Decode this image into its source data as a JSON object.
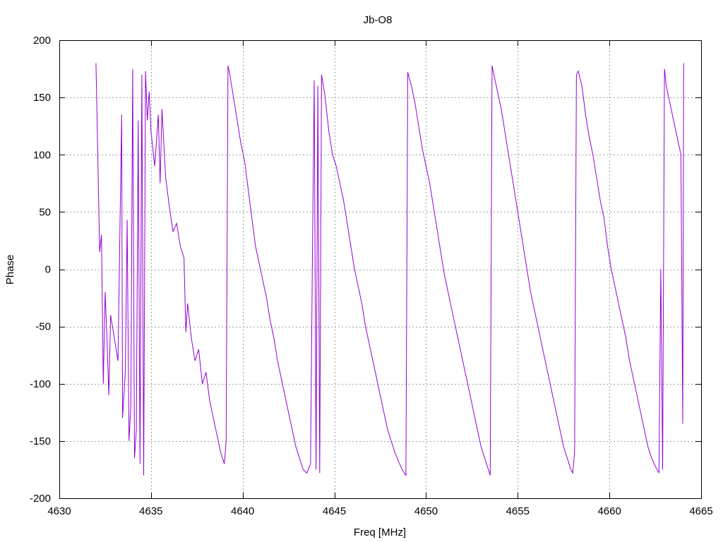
{
  "chart_data": {
    "type": "line",
    "title": "Jb-O8",
    "xlabel": "Freq [MHz]",
    "ylabel": "Phase",
    "xlim": [
      4630,
      4665
    ],
    "ylim": [
      -200,
      200
    ],
    "xticks": [
      4630,
      4635,
      4640,
      4645,
      4650,
      4655,
      4660,
      4665
    ],
    "yticks": [
      -200,
      -150,
      -100,
      -50,
      0,
      50,
      100,
      150,
      200
    ],
    "grid": true,
    "legend": "none",
    "line_color": "#9400d3",
    "series": [
      {
        "points": [
          [
            4632.0,
            180
          ],
          [
            4632.1,
            100
          ],
          [
            4632.2,
            15
          ],
          [
            4632.3,
            30
          ],
          [
            4632.4,
            -100
          ],
          [
            4632.5,
            -20
          ],
          [
            4632.6,
            -60
          ],
          [
            4632.7,
            -110
          ],
          [
            4632.8,
            -40
          ],
          [
            4633.0,
            -60
          ],
          [
            4633.2,
            -80
          ],
          [
            4633.4,
            135
          ],
          [
            4633.45,
            -130
          ],
          [
            4633.6,
            -90
          ],
          [
            4633.7,
            43
          ],
          [
            4633.8,
            -150
          ],
          [
            4633.9,
            -120
          ],
          [
            4634.0,
            175
          ],
          [
            4634.1,
            -165
          ],
          [
            4634.2,
            -140
          ],
          [
            4634.3,
            130
          ],
          [
            4634.4,
            -170
          ],
          [
            4634.5,
            170
          ],
          [
            4634.6,
            -180
          ],
          [
            4634.7,
            173
          ],
          [
            4634.8,
            130
          ],
          [
            4634.9,
            155
          ],
          [
            4635.0,
            120
          ],
          [
            4635.2,
            90
          ],
          [
            4635.4,
            135
          ],
          [
            4635.5,
            75
          ],
          [
            4635.6,
            140
          ],
          [
            4635.7,
            110
          ],
          [
            4635.8,
            80
          ],
          [
            4636.0,
            55
          ],
          [
            4636.2,
            33
          ],
          [
            4636.4,
            40
          ],
          [
            4636.6,
            20
          ],
          [
            4636.8,
            10
          ],
          [
            4636.9,
            -55
          ],
          [
            4637.0,
            -30
          ],
          [
            4637.2,
            -60
          ],
          [
            4637.4,
            -80
          ],
          [
            4637.6,
            -70
          ],
          [
            4637.8,
            -100
          ],
          [
            4638.0,
            -90
          ],
          [
            4638.2,
            -115
          ],
          [
            4638.4,
            -130
          ],
          [
            4638.6,
            -145
          ],
          [
            4638.8,
            -160
          ],
          [
            4639.0,
            -170
          ],
          [
            4639.1,
            -150
          ],
          [
            4639.2,
            178
          ],
          [
            4639.3,
            170
          ],
          [
            4639.5,
            150
          ],
          [
            4639.7,
            130
          ],
          [
            4639.9,
            110
          ],
          [
            4640.1,
            95
          ],
          [
            4640.3,
            70
          ],
          [
            4640.5,
            45
          ],
          [
            4640.7,
            20
          ],
          [
            4640.9,
            5
          ],
          [
            4641.1,
            -10
          ],
          [
            4641.3,
            -25
          ],
          [
            4641.5,
            -45
          ],
          [
            4641.7,
            -60
          ],
          [
            4641.9,
            -80
          ],
          [
            4642.1,
            -95
          ],
          [
            4642.3,
            -110
          ],
          [
            4642.5,
            -125
          ],
          [
            4642.7,
            -140
          ],
          [
            4642.9,
            -155
          ],
          [
            4643.1,
            -165
          ],
          [
            4643.3,
            -175
          ],
          [
            4643.5,
            -178
          ],
          [
            4643.7,
            -170
          ],
          [
            4643.8,
            5
          ],
          [
            4643.9,
            165
          ],
          [
            4644.0,
            -175
          ],
          [
            4644.1,
            160
          ],
          [
            4644.2,
            -178
          ],
          [
            4644.3,
            170
          ],
          [
            4644.5,
            150
          ],
          [
            4644.7,
            120
          ],
          [
            4644.9,
            100
          ],
          [
            4645.1,
            90
          ],
          [
            4645.3,
            75
          ],
          [
            4645.5,
            60
          ],
          [
            4645.7,
            40
          ],
          [
            4645.9,
            20
          ],
          [
            4646.1,
            0
          ],
          [
            4646.3,
            -15
          ],
          [
            4646.5,
            -30
          ],
          [
            4646.7,
            -50
          ],
          [
            4646.9,
            -65
          ],
          [
            4647.1,
            -80
          ],
          [
            4647.3,
            -95
          ],
          [
            4647.5,
            -110
          ],
          [
            4647.7,
            -125
          ],
          [
            4647.9,
            -140
          ],
          [
            4648.1,
            -150
          ],
          [
            4648.3,
            -160
          ],
          [
            4648.5,
            -168
          ],
          [
            4648.7,
            -175
          ],
          [
            4648.9,
            -180
          ],
          [
            4649.0,
            172
          ],
          [
            4649.2,
            160
          ],
          [
            4649.4,
            145
          ],
          [
            4649.6,
            125
          ],
          [
            4649.8,
            105
          ],
          [
            4650.0,
            90
          ],
          [
            4650.2,
            75
          ],
          [
            4650.4,
            55
          ],
          [
            4650.6,
            35
          ],
          [
            4650.8,
            15
          ],
          [
            4651.0,
            -5
          ],
          [
            4651.2,
            -20
          ],
          [
            4651.4,
            -35
          ],
          [
            4651.6,
            -50
          ],
          [
            4651.8,
            -65
          ],
          [
            4652.0,
            -80
          ],
          [
            4652.2,
            -95
          ],
          [
            4652.4,
            -110
          ],
          [
            4652.6,
            -125
          ],
          [
            4652.8,
            -140
          ],
          [
            4653.0,
            -155
          ],
          [
            4653.2,
            -165
          ],
          [
            4653.4,
            -175
          ],
          [
            4653.5,
            -180
          ],
          [
            4653.6,
            178
          ],
          [
            4653.7,
            170
          ],
          [
            4653.9,
            155
          ],
          [
            4654.1,
            140
          ],
          [
            4654.3,
            120
          ],
          [
            4654.5,
            100
          ],
          [
            4654.7,
            80
          ],
          [
            4654.9,
            60
          ],
          [
            4655.1,
            40
          ],
          [
            4655.3,
            20
          ],
          [
            4655.5,
            0
          ],
          [
            4655.7,
            -20
          ],
          [
            4655.9,
            -35
          ],
          [
            4656.1,
            -50
          ],
          [
            4656.3,
            -65
          ],
          [
            4656.5,
            -80
          ],
          [
            4656.7,
            -95
          ],
          [
            4656.9,
            -110
          ],
          [
            4657.1,
            -125
          ],
          [
            4657.3,
            -140
          ],
          [
            4657.5,
            -155
          ],
          [
            4657.7,
            -165
          ],
          [
            4657.9,
            -175
          ],
          [
            4658.0,
            -178
          ],
          [
            4658.1,
            -160
          ],
          [
            4658.2,
            170
          ],
          [
            4658.3,
            173
          ],
          [
            4658.5,
            160
          ],
          [
            4658.7,
            135
          ],
          [
            4658.9,
            115
          ],
          [
            4659.1,
            100
          ],
          [
            4659.3,
            80
          ],
          [
            4659.5,
            60
          ],
          [
            4659.7,
            45
          ],
          [
            4659.9,
            20
          ],
          [
            4660.1,
            0
          ],
          [
            4660.3,
            -15
          ],
          [
            4660.5,
            -30
          ],
          [
            4660.7,
            -45
          ],
          [
            4660.9,
            -60
          ],
          [
            4661.1,
            -80
          ],
          [
            4661.3,
            -95
          ],
          [
            4661.5,
            -110
          ],
          [
            4661.7,
            -125
          ],
          [
            4661.9,
            -140
          ],
          [
            4662.1,
            -155
          ],
          [
            4662.3,
            -165
          ],
          [
            4662.5,
            -172
          ],
          [
            4662.7,
            -178
          ],
          [
            4662.8,
            0
          ],
          [
            4662.9,
            -175
          ],
          [
            4663.0,
            175
          ],
          [
            4663.1,
            160
          ],
          [
            4663.3,
            145
          ],
          [
            4663.5,
            130
          ],
          [
            4663.7,
            115
          ],
          [
            4663.9,
            100
          ],
          [
            4664.0,
            -135
          ],
          [
            4664.05,
            180
          ]
        ]
      }
    ]
  }
}
